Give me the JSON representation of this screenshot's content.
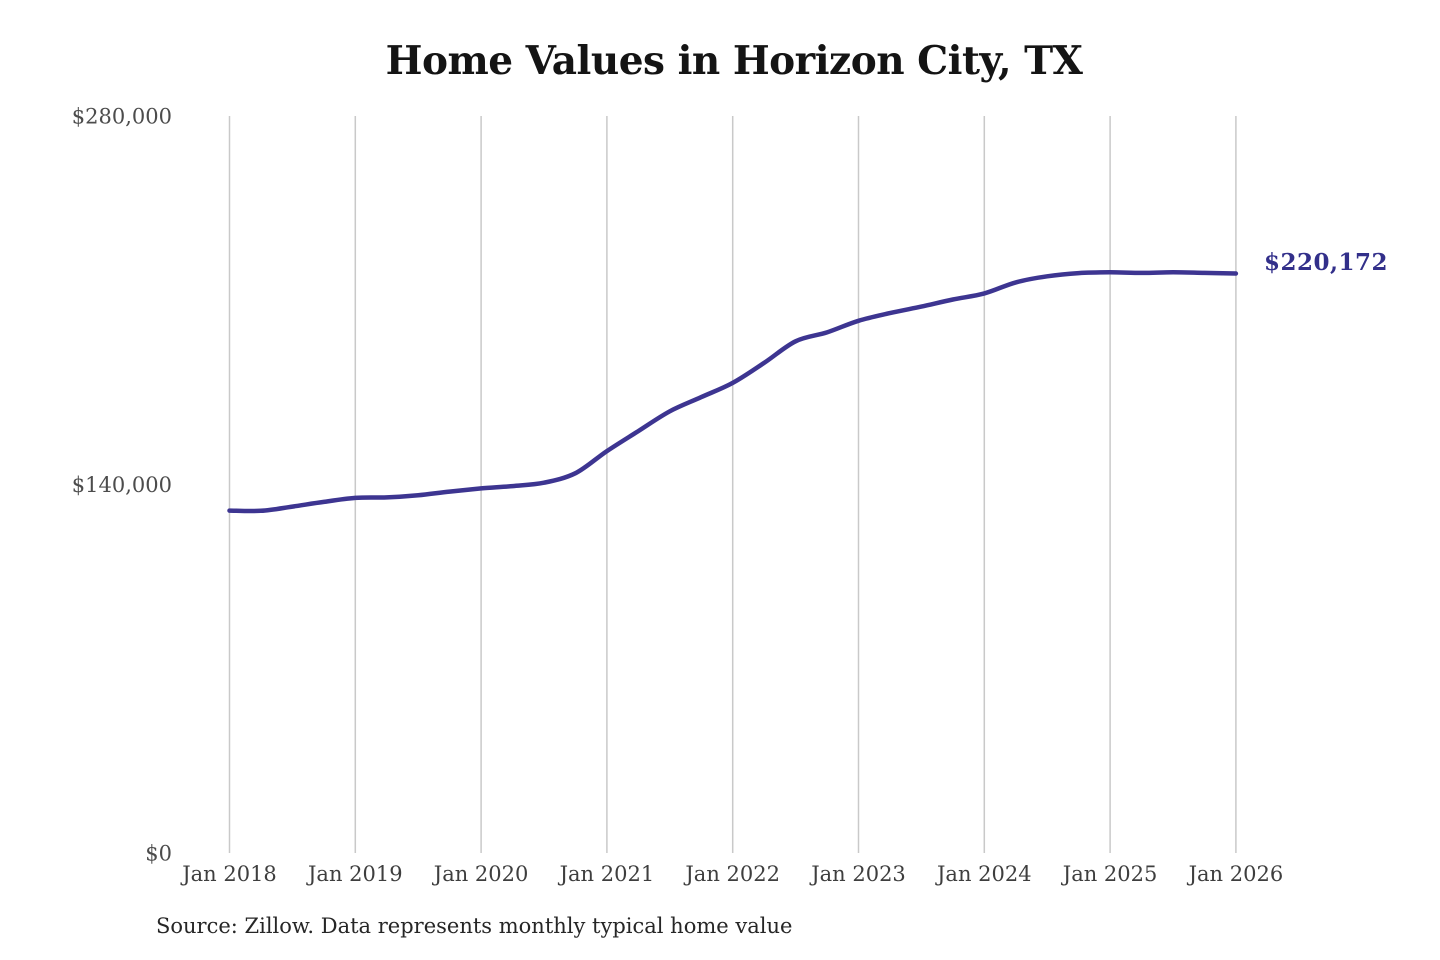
{
  "title": "Home Values in Horizon City, TX",
  "source_note": "Source: Zillow. Data represents monthly typical home value",
  "end_label": "$220,172",
  "colors": {
    "background": "#ffffff",
    "title_text": "#141414",
    "line": "#3d3591",
    "end_label_text": "#322f8a",
    "gridline": "#c9c9c9",
    "y_tick_text": "#4c4c4c",
    "x_tick_text": "#3e3e3e",
    "source_text": "#262626"
  },
  "chart_data": {
    "type": "line",
    "title": "Home Values in Horizon City, TX",
    "series_name": "Monthly typical home value",
    "xlabel": "",
    "ylabel": "",
    "legend": "none",
    "grid": "vertical-only",
    "ylim": [
      0,
      280000
    ],
    "x_range": [
      "Jan 2018",
      "Jan 2026"
    ],
    "y_ticks": [
      {
        "label": "$0",
        "value": 0
      },
      {
        "label": "$140,000",
        "value": 140000
      },
      {
        "label": "$280,000",
        "value": 280000
      }
    ],
    "x_ticks": [
      "Jan 2018",
      "Jan 2019",
      "Jan 2020",
      "Jan 2021",
      "Jan 2022",
      "Jan 2023",
      "Jan 2024",
      "Jan 2025",
      "Jan 2026"
    ],
    "final_value": 220172,
    "final_value_label": "$220,172",
    "points": [
      {
        "date": "2018-01",
        "value": 130100
      },
      {
        "date": "2018-04",
        "value": 130000
      },
      {
        "date": "2018-07",
        "value": 131600
      },
      {
        "date": "2018-10",
        "value": 133400
      },
      {
        "date": "2019-01",
        "value": 134900
      },
      {
        "date": "2019-04",
        "value": 135100
      },
      {
        "date": "2019-07",
        "value": 135900
      },
      {
        "date": "2019-10",
        "value": 137300
      },
      {
        "date": "2020-01",
        "value": 138500
      },
      {
        "date": "2020-04",
        "value": 139400
      },
      {
        "date": "2020-07",
        "value": 140700
      },
      {
        "date": "2020-10",
        "value": 144300
      },
      {
        "date": "2021-01",
        "value": 152700
      },
      {
        "date": "2021-04",
        "value": 160300
      },
      {
        "date": "2021-07",
        "value": 167800
      },
      {
        "date": "2021-10",
        "value": 173200
      },
      {
        "date": "2022-01",
        "value": 178600
      },
      {
        "date": "2022-04",
        "value": 186200
      },
      {
        "date": "2022-07",
        "value": 194400
      },
      {
        "date": "2022-10",
        "value": 197800
      },
      {
        "date": "2023-01",
        "value": 202200
      },
      {
        "date": "2023-04",
        "value": 205100
      },
      {
        "date": "2023-07",
        "value": 207600
      },
      {
        "date": "2023-10",
        "value": 210300
      },
      {
        "date": "2024-01",
        "value": 212600
      },
      {
        "date": "2024-04",
        "value": 216800
      },
      {
        "date": "2024-07",
        "value": 219100
      },
      {
        "date": "2024-10",
        "value": 220300
      },
      {
        "date": "2025-01",
        "value": 220600
      },
      {
        "date": "2025-04",
        "value": 220400
      },
      {
        "date": "2025-07",
        "value": 220600
      },
      {
        "date": "2025-10",
        "value": 220400
      },
      {
        "date": "2026-01",
        "value": 220172
      }
    ]
  }
}
